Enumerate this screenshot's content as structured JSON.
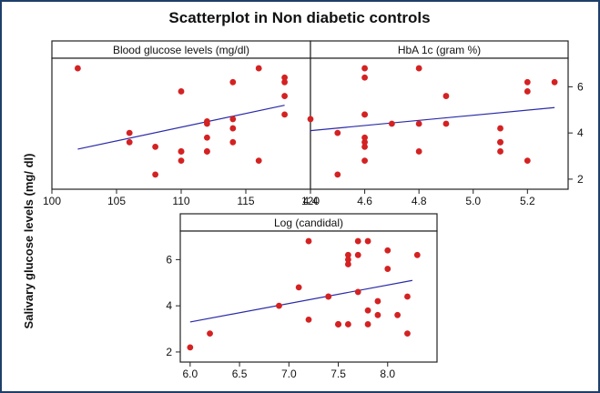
{
  "figure": {
    "title": "Scatterplot in Non diabetic controls",
    "ylabel": "Salivary glucose levels (mg/ dl)"
  },
  "colors": {
    "border": "#1f3f6a",
    "point": "#d42222",
    "line": "#2a2aa8"
  },
  "chart_data": [
    {
      "type": "scatter",
      "title": "Blood glucose levels (mg/dl)",
      "xlim": [
        100,
        120
      ],
      "ylim": [
        1.8,
        7.0
      ],
      "xticks": [
        100,
        105,
        110,
        115,
        120
      ],
      "xtick_labels": [
        "100",
        "105",
        "110",
        "115",
        "120"
      ],
      "yaxis_side": "none",
      "x": [
        102,
        106,
        106,
        108,
        108,
        110,
        110,
        110,
        110,
        112,
        112,
        112,
        112,
        112,
        114,
        114,
        114,
        114,
        116,
        116,
        118,
        118,
        118,
        118
      ],
      "y": [
        6.8,
        4.0,
        3.6,
        3.4,
        2.2,
        5.8,
        3.2,
        3.2,
        2.8,
        4.5,
        4.4,
        3.8,
        3.2,
        3.2,
        6.2,
        4.6,
        4.2,
        3.6,
        6.8,
        2.8,
        6.4,
        6.2,
        5.6,
        4.8
      ],
      "fit": {
        "x": [
          102,
          118
        ],
        "y": [
          3.3,
          5.2
        ]
      }
    },
    {
      "type": "scatter",
      "title": "HbA 1c (gram %)",
      "xlim": [
        4.4,
        5.35
      ],
      "ylim": [
        1.8,
        7.0
      ],
      "xticks": [
        4.4,
        4.6,
        4.8,
        5.0,
        5.2
      ],
      "xtick_labels": [
        "4.4",
        "4.6",
        "4.8",
        "5.0",
        "5.2"
      ],
      "yaxis_side": "right",
      "yticks": [
        2,
        4,
        6
      ],
      "ytick_labels": [
        "2",
        "4",
        "6"
      ],
      "x": [
        4.4,
        4.5,
        4.5,
        4.6,
        4.6,
        4.6,
        4.6,
        4.6,
        4.6,
        4.6,
        4.6,
        4.7,
        4.8,
        4.8,
        4.8,
        4.9,
        4.9,
        5.1,
        5.1,
        5.1,
        5.1,
        5.2,
        5.2,
        5.2,
        5.3
      ],
      "y": [
        4.6,
        4.0,
        2.2,
        6.8,
        6.4,
        4.8,
        3.8,
        3.6,
        3.4,
        2.8,
        4.8,
        4.4,
        6.8,
        4.4,
        3.2,
        5.6,
        4.4,
        4.2,
        3.6,
        3.6,
        3.2,
        6.2,
        5.8,
        2.8,
        6.2
      ],
      "fit": {
        "x": [
          4.4,
          5.3
        ],
        "y": [
          4.1,
          5.1
        ]
      }
    },
    {
      "type": "scatter",
      "title": "Log (candidal)",
      "xlim": [
        5.9,
        8.5
      ],
      "ylim": [
        1.8,
        7.0
      ],
      "xticks": [
        6.0,
        6.5,
        7.0,
        7.5,
        8.0
      ],
      "xtick_labels": [
        "6.0",
        "6.5",
        "7.0",
        "7.5",
        "8.0"
      ],
      "yaxis_side": "left",
      "yticks": [
        2,
        4,
        6
      ],
      "ytick_labels": [
        "2",
        "4",
        "6"
      ],
      "x": [
        6.0,
        6.2,
        6.9,
        7.1,
        7.2,
        7.2,
        7.4,
        7.4,
        7.5,
        7.5,
        7.5,
        7.6,
        7.6,
        7.6,
        7.6,
        7.7,
        7.7,
        7.7,
        7.8,
        7.8,
        7.8,
        7.9,
        7.9,
        8.0,
        8.0,
        8.1,
        8.2,
        8.2,
        8.3
      ],
      "y": [
        2.2,
        2.8,
        4.0,
        4.8,
        6.8,
        3.4,
        4.4,
        4.4,
        3.2,
        3.2,
        3.2,
        6.0,
        6.2,
        5.8,
        3.2,
        6.8,
        6.2,
        4.6,
        6.8,
        3.8,
        3.2,
        4.2,
        3.6,
        6.4,
        5.6,
        3.6,
        4.4,
        2.8,
        6.2
      ],
      "fit": {
        "x": [
          6.0,
          8.25
        ],
        "y": [
          3.3,
          5.1
        ]
      }
    }
  ]
}
